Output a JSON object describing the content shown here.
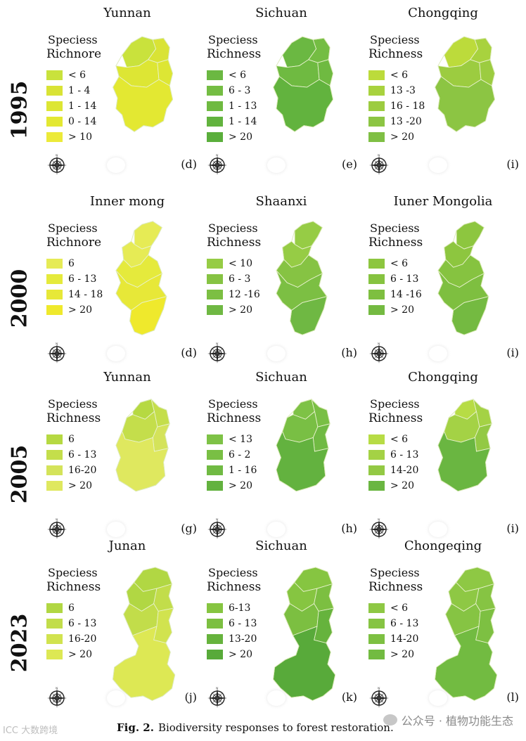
{
  "rows": [
    {
      "year": "1995",
      "panels": [
        {
          "title": "Yunnan",
          "legend_line1": "Speciess",
          "legend_line2": "Richnore",
          "items": [
            "< 6",
            "1 - 4",
            "1 - 14",
            "0 - 14",
            "> 10"
          ],
          "colors": [
            "#c9e23c",
            "#d9e335",
            "#dde634",
            "#e3e832",
            "#ecea39"
          ],
          "label": "(d)",
          "shape": "A"
        },
        {
          "title": "Sichuan",
          "legend_line1": "Speciess",
          "legend_line2": "Richness",
          "items": [
            "< 6",
            "6 - 3",
            "1 - 13",
            "1 - 14",
            "> 20"
          ],
          "colors": [
            "#6bb842",
            "#74bd43",
            "#6fba41",
            "#62b33e",
            "#5aae3b"
          ],
          "label": "(e)",
          "shape": "A"
        },
        {
          "title": "Chongqing",
          "legend_line1": "Speciess",
          "legend_line2": "Richness",
          "items": [
            "< 6",
            "13 -3",
            "16 - 18",
            "13 -20",
            "> 20"
          ],
          "colors": [
            "#bcdb3b",
            "#a8d23e",
            "#9ccc40",
            "#8cc543",
            "#7fbf44"
          ],
          "label": "(i)",
          "shape": "A"
        }
      ]
    },
    {
      "year": "2000",
      "panels": [
        {
          "title": "Inner mong",
          "legend_line1": "Speciess",
          "legend_line2": "Richnore",
          "items": [
            "6",
            "6 - 13",
            "14 - 18",
            "> 20"
          ],
          "colors": [
            "#e6eb55",
            "#e5ea3c",
            "#e7e838",
            "#efe92c"
          ],
          "label": "(d)",
          "shape": "B"
        },
        {
          "title": "Shaanxi",
          "legend_line1": "Speciess",
          "legend_line2": "Richness",
          "items": [
            "< 10",
            "6 - 3",
            "12 -16",
            "> 20"
          ],
          "colors": [
            "#96cc45",
            "#86c343",
            "#7cbf43",
            "#6fb843"
          ],
          "label": "(h)",
          "shape": "B"
        },
        {
          "title": "Iuner Mongolia",
          "legend_line1": "Speciess",
          "legend_line2": "Richness",
          "items": [
            "< 6",
            "6 - 13",
            "14 -16",
            "> 20"
          ],
          "colors": [
            "#8dc63f",
            "#86c340",
            "#7ebf40",
            "#74ba41"
          ],
          "label": "(i)",
          "shape": "B"
        }
      ]
    },
    {
      "year": "2005",
      "panels": [
        {
          "title": "Yunnan",
          "legend_line1": "Speciess",
          "legend_line2": "Richness",
          "items": [
            "6",
            "6 - 13",
            "16-20",
            "> 20"
          ],
          "colors": [
            "#b6d942",
            "#c4de4b",
            "#d4e35a",
            "#dfe85f"
          ],
          "label": "(g)",
          "shape": "C"
        },
        {
          "title": "Sichuan",
          "legend_line1": "Speciess",
          "legend_line2": "Richness",
          "items": [
            "< 13",
            "6 - 2",
            "1 - 16",
            "> 20"
          ],
          "colors": [
            "#7ec246",
            "#79bf44",
            "#70ba43",
            "#63b23f"
          ],
          "label": "(h)",
          "shape": "C"
        },
        {
          "title": "Chongqing",
          "legend_line1": "Speciess",
          "legend_line2": "Richness",
          "items": [
            "< 6",
            "6 - 13",
            "14-20",
            "> 20"
          ],
          "colors": [
            "#b7dc45",
            "#a4d245",
            "#93c944",
            "#6ab641"
          ],
          "label": "(i)",
          "shape": "C"
        }
      ]
    },
    {
      "year": "2023",
      "panels": [
        {
          "title": "Junan",
          "legend_line1": "Speciess",
          "legend_line2": "Richness",
          "items": [
            "6",
            "6 - 13",
            "16-20",
            "> 20"
          ],
          "colors": [
            "#b1d743",
            "#c2dd4a",
            "#d1e34f",
            "#dde854"
          ],
          "label": "(j)",
          "shape": "D"
        },
        {
          "title": "Sichuan",
          "legend_line1": "Speciess",
          "legend_line2": "Richness",
          "items": [
            "6-13",
            "6 - 13",
            "13-20",
            "> 20"
          ],
          "colors": [
            "#86c541",
            "#7cbf41",
            "#66b33d",
            "#58aa3a"
          ],
          "label": "(k)",
          "shape": "D"
        },
        {
          "title": "Chongeqing",
          "legend_line1": "Speciess",
          "legend_line2": "Richness",
          "items": [
            "< 6",
            "6 - 13",
            "14-20",
            "> 20"
          ],
          "colors": [
            "#8ec844",
            "#86c443",
            "#7dc042",
            "#72bb41"
          ],
          "label": "(l)",
          "shape": "D"
        }
      ]
    }
  ],
  "caption": {
    "fig": "Fig. 2.",
    "text": "Biodiversity responses to forest restoration."
  },
  "watermark_left": "ICC 大数跨境",
  "watermark_right": "公众号 · 植物功能生态"
}
